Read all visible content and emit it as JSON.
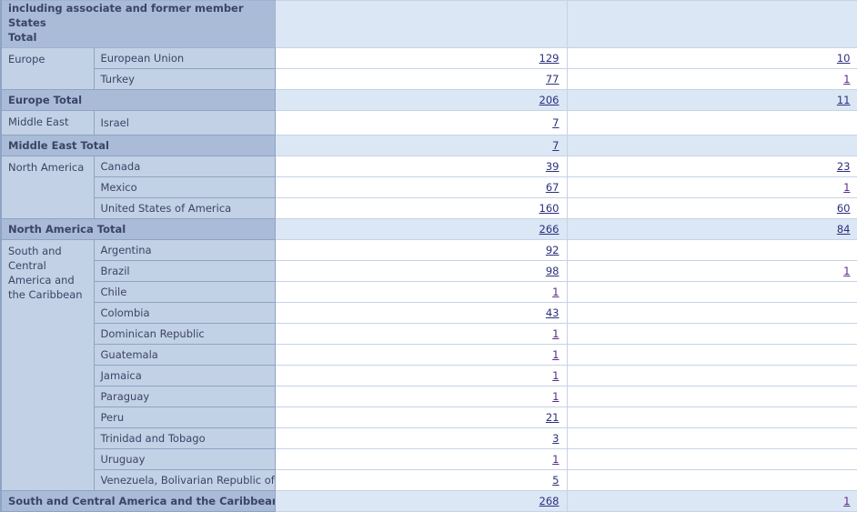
{
  "header": {
    "label_line1": "including associate and former member States",
    "label_line2": "Total"
  },
  "groups": [
    {
      "region": "Europe",
      "rows": [
        {
          "country": "European Union",
          "v1": "129",
          "v2": "10"
        },
        {
          "country": "Turkey",
          "v1": "77",
          "v2": "1"
        }
      ],
      "total": {
        "label": "Europe Total",
        "v1": "206",
        "v2": "11"
      }
    },
    {
      "region": "Middle East",
      "rows": [
        {
          "country": "Israel",
          "v1": "7",
          "v2": ""
        }
      ],
      "total": {
        "label": "Middle East Total",
        "v1": "7",
        "v2": ""
      }
    },
    {
      "region": "North America",
      "rows": [
        {
          "country": "Canada",
          "v1": "39",
          "v2": "23"
        },
        {
          "country": "Mexico",
          "v1": "67",
          "v2": "1"
        },
        {
          "country": "United States of America",
          "v1": "160",
          "v2": "60"
        }
      ],
      "total": {
        "label": "North America Total",
        "v1": "266",
        "v2": "84"
      }
    },
    {
      "region": "South and Central America and the Caribbean",
      "rows": [
        {
          "country": "Argentina",
          "v1": "92",
          "v2": ""
        },
        {
          "country": "Brazil",
          "v1": "98",
          "v2": "1"
        },
        {
          "country": "Chile",
          "v1": "1",
          "v2": ""
        },
        {
          "country": "Colombia",
          "v1": "43",
          "v2": ""
        },
        {
          "country": "Dominican Republic",
          "v1": "1",
          "v2": ""
        },
        {
          "country": "Guatemala",
          "v1": "1",
          "v2": ""
        },
        {
          "country": "Jamaica",
          "v1": "1",
          "v2": ""
        },
        {
          "country": "Paraguay",
          "v1": "1",
          "v2": ""
        },
        {
          "country": "Peru",
          "v1": "21",
          "v2": ""
        },
        {
          "country": "Trinidad and Tobago",
          "v1": "3",
          "v2": ""
        },
        {
          "country": "Uruguay",
          "v1": "1",
          "v2": ""
        },
        {
          "country": "Venezuela, Bolivarian Republic of",
          "v1": "5",
          "v2": ""
        }
      ],
      "total": {
        "label": "South and Central America and the Caribbean Total",
        "v1": "268",
        "v2": "1"
      }
    }
  ]
}
